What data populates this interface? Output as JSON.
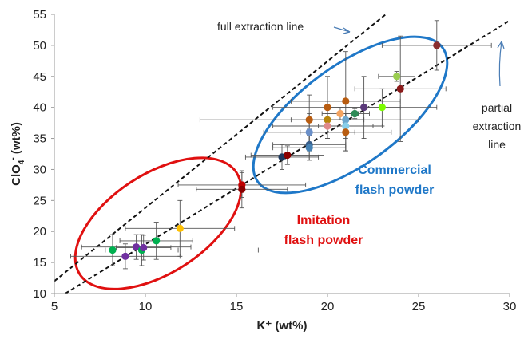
{
  "chart_data": {
    "type": "scatter",
    "xlabel": "K⁺ (wt%)",
    "ylabel_main": "ClO",
    "ylabel_sub": "4",
    "ylabel_sup": "-",
    "ylabel_tail": " (wt%)",
    "xlim": [
      5,
      30
    ],
    "ylim": [
      10,
      55
    ],
    "x_ticks": [
      5,
      10,
      15,
      20,
      25,
      30
    ],
    "y_ticks": [
      10,
      15,
      20,
      25,
      30,
      35,
      40,
      45,
      50,
      55
    ],
    "grid": false,
    "lines": [
      {
        "label": "full extraction line",
        "style": "dashed",
        "points": [
          [
            5,
            12
          ],
          [
            23.2,
            55
          ]
        ]
      },
      {
        "label": "partial extraction line",
        "style": "dashed",
        "points": [
          [
            5.6,
            10
          ],
          [
            30,
            54
          ]
        ]
      }
    ],
    "annotations": [
      {
        "text": "full extraction line"
      },
      {
        "text_lines": [
          "partial",
          "extraction",
          "line"
        ]
      }
    ],
    "groups": [
      {
        "name_lines": [
          "Commercial",
          "flash powder"
        ],
        "color": "#1F78C8"
      },
      {
        "name_lines": [
          "Imitation",
          "flash powder"
        ],
        "color": "#E01010"
      }
    ],
    "points": [
      {
        "x": 26.0,
        "y": 50.0,
        "xerr": 3.0,
        "yerr": 4.0,
        "color": "#8B2E2E"
      },
      {
        "x": 23.8,
        "y": 45.0,
        "xerr": 1.0,
        "yerr": 0.8,
        "color": "#9ACD50"
      },
      {
        "x": 24.0,
        "y": 43.0,
        "xerr": 2.5,
        "yerr": 8.5,
        "color": "#8B1A1A"
      },
      {
        "x": 21.0,
        "y": 41.0,
        "xerr": 3.0,
        "yerr": 8.0,
        "color": "#B85C10"
      },
      {
        "x": 20.0,
        "y": 40.0,
        "xerr": 3.0,
        "yerr": 5.0,
        "color": "#B85C10"
      },
      {
        "x": 22.0,
        "y": 40.0,
        "xerr": 2.0,
        "yerr": 5.0,
        "color": "#5B3A7A"
      },
      {
        "x": 23.0,
        "y": 40.0,
        "xerr": 3.0,
        "yerr": 3.0,
        "color": "#7CFC00"
      },
      {
        "x": 19.0,
        "y": 38.0,
        "xerr": 6.0,
        "yerr": 4.0,
        "color": "#B85C10"
      },
      {
        "x": 20.0,
        "y": 38.0,
        "xerr": 2.0,
        "yerr": 3.0,
        "color": "#B8860B"
      },
      {
        "x": 20.7,
        "y": 39.0,
        "xerr": 1.0,
        "yerr": 1.0,
        "color": "#F4A460"
      },
      {
        "x": 21.0,
        "y": 38.0,
        "xerr": 1.0,
        "yerr": 1.0,
        "color": "#6CA6CD"
      },
      {
        "x": 20.0,
        "y": 37.0,
        "xerr": 3.0,
        "yerr": 2.0,
        "color": "#E08A8A"
      },
      {
        "x": 21.0,
        "y": 37.0,
        "xerr": 1.5,
        "yerr": 2.0,
        "color": "#87CEEB"
      },
      {
        "x": 19.0,
        "y": 36.0,
        "xerr": 2.5,
        "yerr": 3.0,
        "color": "#6A8FC8"
      },
      {
        "x": 21.0,
        "y": 36.0,
        "xerr": 2.5,
        "yerr": 3.0,
        "color": "#B85C10"
      },
      {
        "x": 21.5,
        "y": 39.0,
        "xerr": 0.8,
        "yerr": 0.8,
        "color": "#2E8B57"
      },
      {
        "x": 19.0,
        "y": 34.0,
        "xerr": 2.0,
        "yerr": 2.5,
        "color": "#3A5F8A"
      },
      {
        "x": 19.0,
        "y": 33.5,
        "xerr": 2.0,
        "yerr": 2.0,
        "color": "#4682B4"
      },
      {
        "x": 17.5,
        "y": 32.0,
        "xerr": 2.0,
        "yerr": 2.0,
        "color": "#1E3A5F"
      },
      {
        "x": 17.8,
        "y": 32.3,
        "xerr": 2.0,
        "yerr": 1.5,
        "color": "#8B0000"
      },
      {
        "x": 15.3,
        "y": 27.5,
        "xerr": 3.5,
        "yerr": 2.0,
        "color": "#C00000"
      },
      {
        "x": 15.3,
        "y": 26.8,
        "xerr": 2.5,
        "yerr": 3.0,
        "color": "#8B0000"
      },
      {
        "x": 11.9,
        "y": 20.5,
        "xerr": 3.0,
        "yerr": 4.5,
        "color": "#FFC000"
      },
      {
        "x": 10.6,
        "y": 18.5,
        "xerr": 2.0,
        "yerr": 3.0,
        "color": "#00B050"
      },
      {
        "x": 8.2,
        "y": 17.0,
        "xerr": 8.0,
        "yerr": 2.5,
        "color": "#00B050"
      },
      {
        "x": 9.5,
        "y": 17.5,
        "xerr": 3.0,
        "yerr": 2.0,
        "color": "#7030A0"
      },
      {
        "x": 9.8,
        "y": 17.0,
        "xerr": 2.0,
        "yerr": 2.5,
        "color": "#00B050"
      },
      {
        "x": 9.9,
        "y": 17.4,
        "xerr": 1.5,
        "yerr": 2.0,
        "color": "#7030A0"
      },
      {
        "x": 8.9,
        "y": 16.0,
        "xerr": 3.0,
        "yerr": 2.0,
        "color": "#7030A0"
      }
    ]
  }
}
